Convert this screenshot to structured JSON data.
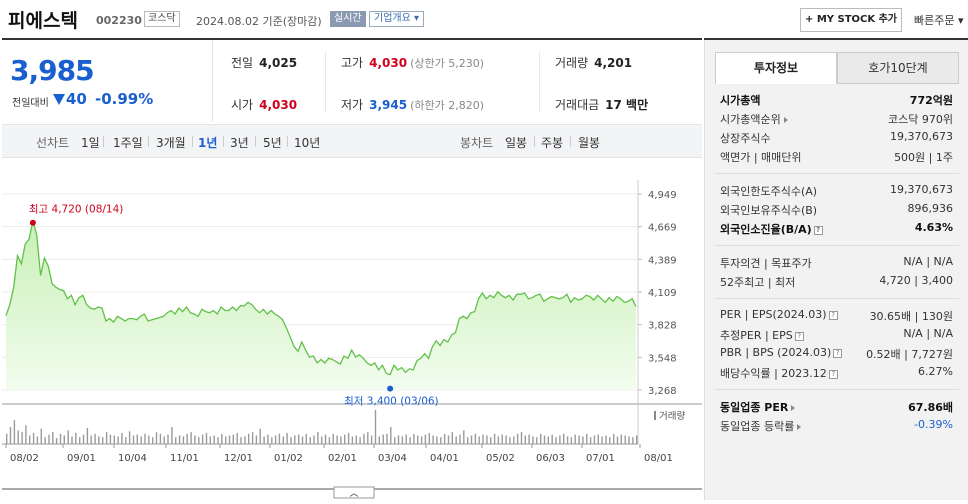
{
  "header": {
    "name": "피에스텍",
    "code": "002230",
    "market": "코스닥",
    "date": "2024.08.02  기준(장마감)",
    "live": "실시간",
    "corp_info": "기업개요",
    "mystock": "+ MY STOCK 추가",
    "quick_order": "빠른주문"
  },
  "price": {
    "current": "3,985",
    "change_label": "전일대비",
    "change_abs": "40",
    "change_pct": "-0.99%",
    "direction": "down"
  },
  "stats": {
    "prev_label": "전일",
    "prev": "4,025",
    "high_label": "고가",
    "high": "4,030",
    "upper_limit": "(상한가 5,230)",
    "volume_label": "거래량",
    "volume": "4,201",
    "open_label": "시가",
    "open": "4,030",
    "low_label": "저가",
    "low": "3,945",
    "lower_limit": "(하한가 2,820)",
    "amount_label": "거래대금",
    "amount": "17 백만"
  },
  "tabs": {
    "line_label": "선차트",
    "line_items": [
      "1일",
      "1주일",
      "3개월",
      "1년",
      "3년",
      "5년",
      "10년"
    ],
    "selected": "1년",
    "candle_label": "봉차트",
    "candle_items": [
      "일봉",
      "주봉",
      "월봉"
    ]
  },
  "chart_data": {
    "type": "area",
    "y_ticks": [
      "4,949",
      "4,669",
      "4,389",
      "4,109",
      "3,828",
      "3,548",
      "3,268"
    ],
    "ylim": [
      3268,
      4949
    ],
    "x_ticks": [
      "08/02",
      "09/01",
      "10/04",
      "11/01",
      "12/01",
      "01/02",
      "02/01",
      "03/04",
      "04/01",
      "05/02",
      "06/03",
      "07/01",
      "08/01"
    ],
    "high_annotation": "최고 4,720 (08/14)",
    "low_annotation": "최저 3,400 (03/06)",
    "volume_label": "거래량",
    "series": [
      {
        "values": [
          3905,
          4000,
          4150,
          4420,
          4350,
          4520,
          4560,
          4720,
          4600,
          4250,
          4400,
          4330,
          4180,
          4150,
          4130,
          4120,
          4050,
          4080,
          4000,
          4060,
          4080,
          4000,
          3970,
          3960,
          3980,
          3970,
          3860,
          3880,
          3850,
          3900,
          3880,
          3860,
          3880,
          3880,
          3870,
          3900,
          3920,
          3860,
          3870,
          3880,
          3890,
          3900,
          3930,
          3950,
          3920,
          3970,
          3940,
          3980,
          3930,
          3920,
          3900,
          3960,
          3940,
          3930,
          3950,
          3920,
          3980,
          3950,
          3950,
          3980,
          3950,
          3990,
          3990,
          4020,
          4000,
          3960,
          3930,
          3960,
          3920,
          3950,
          3920,
          3900,
          3870,
          3800,
          3720,
          3640,
          3600,
          3680,
          3610,
          3550,
          3560,
          3500,
          3530,
          3500,
          3540,
          3530,
          3510,
          3490,
          3560,
          3540,
          3610,
          3550,
          3570,
          3540,
          3500,
          3480,
          3500,
          3440,
          3480,
          3410,
          3400,
          3480,
          3440,
          3460,
          3420,
          3450,
          3440,
          3520,
          3540,
          3580,
          3540,
          3640,
          3690,
          3650,
          3700,
          3680,
          3740,
          3760,
          3880,
          3900,
          3880,
          3930,
          3940,
          4050,
          4100,
          4050,
          4080,
          4060,
          4110,
          4080,
          4060,
          4080,
          4040,
          4090,
          4090,
          4100,
          4050,
          4060,
          4080,
          4090,
          4030,
          4050,
          4070,
          4060,
          4050,
          4060,
          4090,
          4020,
          4060,
          4040,
          4050,
          4080,
          4070,
          4040,
          4080,
          4050,
          4020,
          4060,
          4030,
          4070,
          4050,
          4020,
          4030,
          4050,
          3985
        ]
      }
    ],
    "volume": [
      12,
      20,
      28,
      16,
      14,
      22,
      10,
      13,
      9,
      18,
      8,
      11,
      14,
      7,
      12,
      10,
      16,
      9,
      13,
      8,
      11,
      19,
      10,
      12,
      9,
      8,
      14,
      11,
      10,
      9,
      13,
      8,
      15,
      10,
      11,
      9,
      12,
      10,
      8,
      14,
      12,
      9,
      11,
      20,
      8,
      10,
      9,
      12,
      14,
      10,
      8,
      11,
      13,
      9,
      10,
      8,
      12,
      9,
      10,
      11,
      13,
      8,
      9,
      12,
      14,
      10,
      18,
      9,
      11,
      8,
      10,
      12,
      9,
      13,
      8,
      10,
      11,
      9,
      12,
      8,
      10,
      14,
      9,
      11,
      8,
      12,
      10,
      9,
      11,
      13,
      9,
      10,
      8,
      12,
      14,
      10,
      40,
      9,
      11,
      12,
      20,
      8,
      10,
      9,
      11,
      8,
      12,
      10,
      9,
      11,
      13,
      10,
      9,
      8,
      12,
      10,
      14,
      9,
      11,
      16,
      8,
      10,
      12,
      9,
      11,
      10,
      8,
      12,
      9,
      11,
      10,
      8,
      9,
      12,
      14,
      10,
      11,
      9,
      8,
      12,
      10,
      9,
      11,
      8,
      10,
      12,
      9,
      8,
      11,
      10,
      9,
      12,
      8,
      10,
      11,
      9,
      10,
      8,
      12,
      9,
      11,
      10,
      9,
      8,
      10
    ]
  },
  "panel": {
    "tab_active": "투자정보",
    "tab_other": "호가10단계",
    "rows": [
      {
        "k": "시가총액",
        "v": "772억원",
        "bold": true
      },
      {
        "k": "시가총액순위",
        "v": "코스닥 970위",
        "arrow": true
      },
      {
        "k": "상장주식수",
        "v": "19,370,673"
      },
      {
        "k": "액면가 | 매매단위",
        "v": "500원 | 1주"
      },
      {
        "k": "외국인한도주식수(A)",
        "v": "19,370,673"
      },
      {
        "k": "외국인보유주식수(B)",
        "v": "896,936"
      },
      {
        "k": "외국인소진율(B/A)",
        "v": "4.63%",
        "bold": true,
        "icon": true
      },
      {
        "k": "투자의견 | 목표주가",
        "v": "N/A | N/A"
      },
      {
        "k": "52주최고 | 최저",
        "v": "4,720 | 3,400"
      },
      {
        "k": "PER | EPS(2024.03)",
        "v": "30.65배 | 130원",
        "icon": true
      },
      {
        "k": "추정PER | EPS",
        "v": "N/A | N/A",
        "icon": true
      },
      {
        "k": "PBR | BPS (2024.03)",
        "v": "0.52배 | 7,727원",
        "icon": true
      },
      {
        "k": "배당수익률 | 2023.12",
        "v": "6.27%",
        "icon": true
      },
      {
        "k": "동일업종 PER",
        "v": "67.86배",
        "bold": true,
        "arrow": true
      },
      {
        "k": "동일업종 등락률",
        "v": "-0.39%",
        "arrow": true,
        "vclass": "blue"
      }
    ]
  }
}
